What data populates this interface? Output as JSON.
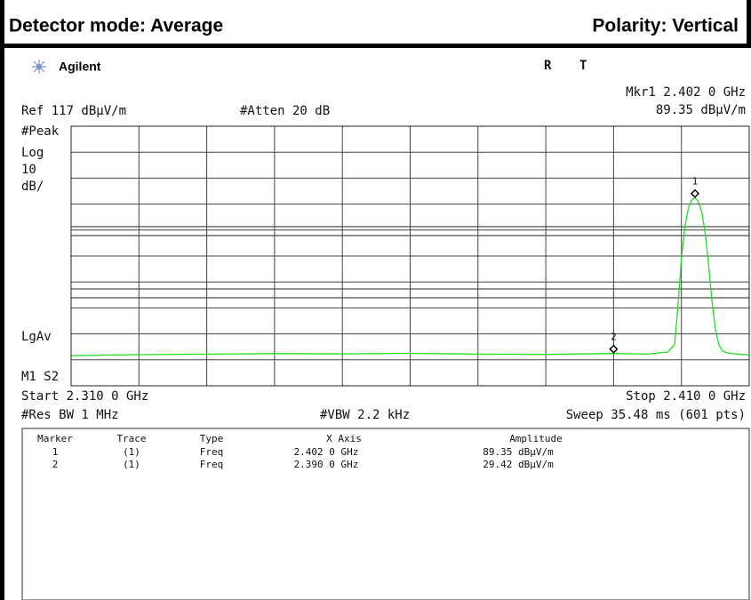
{
  "header": {
    "left": "Detector mode: Average",
    "right": "Polarity: Vertical"
  },
  "screen": {
    "brand": "Agilent",
    "status_r": "R",
    "status_t": "T",
    "marker_readout_freq": "Mkr1  2.402 0 GHz",
    "marker_readout_amp": "89.35 dBμV/m",
    "ref_level": "Ref 117 dBμV/m",
    "atten": "#Atten 20 dB",
    "left_labels": [
      "#Peak",
      "Log",
      "10",
      "dB/",
      "LgAv",
      "M1  S2"
    ],
    "start": "Start 2.310 0 GHz",
    "stop": "Stop 2.410 0 GHz",
    "res_bw": "#Res BW 1 MHz",
    "vbw": "#VBW 2.2 kHz",
    "sweep": "Sweep 35.48 ms (601 pts)"
  },
  "table": {
    "columns": [
      "Marker",
      "Trace",
      "Type",
      "X Axis",
      "Amplitude"
    ],
    "rows": [
      [
        "1",
        "(1)",
        "Freq",
        "2.402 0 GHz",
        "89.35 dBμV/m"
      ],
      [
        "2",
        "(1)",
        "Freq",
        "2.390 0 GHz",
        "29.42 dBμV/m"
      ]
    ]
  },
  "chart_data": {
    "type": "line",
    "color": "#22dd22",
    "x": [
      2.31,
      2.32,
      2.33,
      2.34,
      2.35,
      2.36,
      2.37,
      2.38,
      2.39,
      2.395,
      2.398,
      2.399,
      2.3995,
      2.4,
      2.4005,
      2.401,
      2.4015,
      2.402,
      2.4025,
      2.403,
      2.4035,
      2.404,
      2.4045,
      2.405,
      2.4055,
      2.406,
      2.407,
      2.41
    ],
    "values": [
      28.6,
      29,
      29.2,
      29.4,
      29.3,
      29.5,
      29.2,
      29.1,
      29.42,
      29.2,
      30,
      33,
      48,
      66,
      78,
      85,
      88.5,
      89.35,
      88,
      84,
      76,
      64,
      50,
      39,
      33,
      30.5,
      29.5,
      28.8
    ],
    "xlim": [
      2.31,
      2.41
    ],
    "ylim": [
      17,
      117
    ],
    "xticks": [
      2.31,
      2.32,
      2.33,
      2.34,
      2.35,
      2.36,
      2.37,
      2.38,
      2.39,
      2.4,
      2.41
    ],
    "yticks": [
      17,
      27,
      37,
      47,
      57,
      67,
      77,
      87,
      97,
      107,
      117
    ],
    "markers": [
      {
        "label": "1",
        "x": 2.402,
        "y": 89.35
      },
      {
        "label": "2",
        "x": 2.39,
        "y": 29.42
      }
    ]
  }
}
